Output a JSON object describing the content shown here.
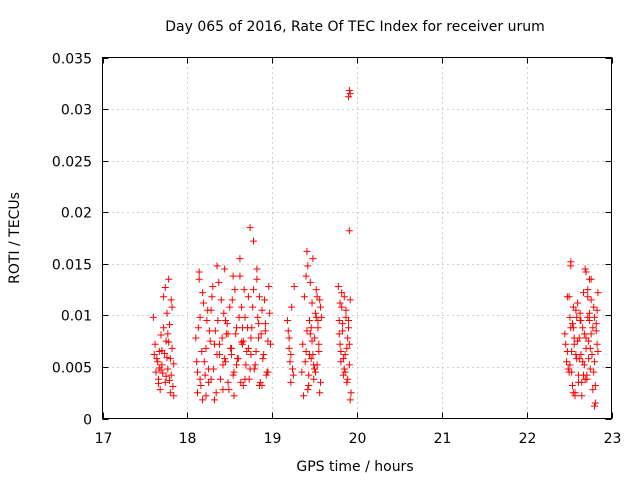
{
  "chart_data": {
    "type": "scatter",
    "title": "Day 065 of 2016, Rate Of TEC Index for receiver urum",
    "xlabel": "GPS time / hours",
    "ylabel": "ROTI / TECUs",
    "xlim": [
      17,
      23
    ],
    "ylim": [
      0,
      0.035
    ],
    "x_ticks": [
      "17",
      "18",
      "19",
      "20",
      "21",
      "22",
      "23"
    ],
    "y_ticks": [
      "0",
      "0.005",
      "0.01",
      "0.015",
      "0.02",
      "0.025",
      "0.03",
      "0.035"
    ],
    "grid": true,
    "marker": "+",
    "color": "#ff0000",
    "series": [
      {
        "name": "urum",
        "x": [
          17.6,
          17.62,
          17.63,
          17.65,
          17.66,
          17.67,
          17.68,
          17.69,
          17.7,
          17.71,
          17.72,
          17.73,
          17.74,
          17.75,
          17.76,
          17.77,
          17.78,
          17.79,
          17.8,
          17.81,
          17.82,
          17.83,
          17.84,
          17.61,
          17.64,
          17.66,
          17.69,
          17.72,
          17.75,
          17.78,
          17.8,
          17.82,
          17.84,
          17.7,
          17.76,
          17.79,
          17.81,
          17.74,
          17.67,
          17.77,
          18.1,
          18.12,
          18.14,
          18.15,
          18.16,
          18.18,
          18.2,
          18.22,
          18.24,
          18.26,
          18.28,
          18.3,
          18.32,
          18.34,
          18.36,
          18.38,
          18.4,
          18.42,
          18.44,
          18.46,
          18.48,
          18.5,
          18.52,
          18.54,
          18.56,
          18.58,
          18.6,
          18.62,
          18.64,
          18.66,
          18.68,
          18.7,
          18.72,
          18.74,
          18.76,
          18.78,
          18.8,
          18.82,
          18.84,
          18.86,
          18.88,
          18.9,
          18.92,
          18.94,
          18.96,
          18.98,
          18.11,
          18.13,
          18.17,
          18.19,
          18.21,
          18.23,
          18.25,
          18.27,
          18.29,
          18.31,
          18.33,
          18.35,
          18.37,
          18.39,
          18.41,
          18.43,
          18.45,
          18.47,
          18.49,
          18.51,
          18.53,
          18.55,
          18.57,
          18.59,
          18.61,
          18.63,
          18.65,
          18.67,
          18.69,
          18.71,
          18.73,
          18.75,
          18.77,
          18.79,
          18.81,
          18.83,
          18.85,
          18.87,
          18.89,
          18.91,
          18.93,
          18.95,
          18.97,
          18.12,
          18.22,
          18.32,
          18.42,
          18.52,
          18.62,
          18.72,
          18.82,
          18.92,
          18.15,
          18.25,
          18.35,
          18.45,
          18.55,
          18.65,
          18.75,
          18.85,
          18.95,
          18.18,
          18.28,
          18.38,
          18.48,
          18.58,
          18.68,
          18.78,
          18.88,
          18.14,
          18.44,
          18.64,
          18.74,
          18.84,
          18.54,
          18.66,
          19.18,
          19.2,
          19.22,
          19.24,
          19.26,
          19.19,
          19.21,
          19.23,
          19.25,
          19.2,
          19.22,
          19.35,
          19.37,
          19.38,
          19.4,
          19.41,
          19.42,
          19.43,
          19.44,
          19.45,
          19.46,
          19.47,
          19.48,
          19.49,
          19.5,
          19.51,
          19.52,
          19.53,
          19.54,
          19.55,
          19.56,
          19.57,
          19.58,
          19.36,
          19.39,
          19.42,
          19.45,
          19.48,
          19.51,
          19.54,
          19.57,
          19.4,
          19.44,
          19.47,
          19.5,
          19.53,
          19.43,
          19.46,
          19.49,
          19.52,
          19.55,
          19.41,
          19.56,
          19.78,
          19.79,
          19.8,
          19.81,
          19.82,
          19.83,
          19.84,
          19.85,
          19.86,
          19.87,
          19.88,
          19.89,
          19.9,
          19.91,
          19.92,
          19.93,
          19.79,
          19.81,
          19.83,
          19.85,
          19.87,
          19.89,
          19.91,
          19.8,
          19.84,
          19.88,
          19.92,
          19.82,
          19.86,
          19.9,
          19.9,
          19.91,
          19.92,
          19.91,
          22.45,
          22.47,
          22.48,
          22.5,
          22.51,
          22.52,
          22.53,
          22.54,
          22.55,
          22.56,
          22.57,
          22.58,
          22.59,
          22.6,
          22.61,
          22.62,
          22.63,
          22.64,
          22.65,
          22.66,
          22.67,
          22.68,
          22.69,
          22.7,
          22.71,
          22.72,
          22.73,
          22.74,
          22.75,
          22.76,
          22.77,
          22.78,
          22.79,
          22.8,
          22.81,
          22.82,
          22.83,
          22.84,
          22.46,
          22.49,
          22.52,
          22.55,
          22.58,
          22.61,
          22.64,
          22.67,
          22.7,
          22.73,
          22.76,
          22.79,
          22.82,
          22.48,
          22.51,
          22.54,
          22.57,
          22.6,
          22.63,
          22.66,
          22.69,
          22.72,
          22.75,
          22.78,
          22.81,
          22.84,
          22.5,
          22.53,
          22.56,
          22.59,
          22.62,
          22.65,
          22.68,
          22.71,
          22.74,
          22.77,
          22.8,
          22.83,
          22.52,
          22.55,
          22.7,
          22.72,
          22.74,
          22.76,
          22.8
        ],
        "y": [
          0.0098,
          0.0072,
          0.0045,
          0.0055,
          0.0038,
          0.0065,
          0.0028,
          0.0081,
          0.0052,
          0.0044,
          0.0118,
          0.0063,
          0.0035,
          0.0075,
          0.0102,
          0.0048,
          0.0135,
          0.0091,
          0.0058,
          0.0042,
          0.0068,
          0.0031,
          0.0022,
          0.0062,
          0.0058,
          0.0034,
          0.0047,
          0.0088,
          0.0041,
          0.0074,
          0.0025,
          0.0108,
          0.0053,
          0.0066,
          0.0059,
          0.0037,
          0.0115,
          0.0127,
          0.0049,
          0.0082,
          0.0078,
          0.0045,
          0.0142,
          0.0098,
          0.0032,
          0.0122,
          0.0055,
          0.0068,
          0.0105,
          0.0085,
          0.0038,
          0.0128,
          0.0072,
          0.0025,
          0.0095,
          0.0062,
          0.0115,
          0.0052,
          0.0145,
          0.0082,
          0.0035,
          0.0108,
          0.0068,
          0.0042,
          0.0125,
          0.0088,
          0.0058,
          0.0138,
          0.0074,
          0.0032,
          0.0098,
          0.0065,
          0.0118,
          0.0048,
          0.0088,
          0.0172,
          0.0052,
          0.0135,
          0.0078,
          0.0035,
          0.0105,
          0.0062,
          0.0092,
          0.0045,
          0.0128,
          0.0072,
          0.0055,
          0.0088,
          0.0065,
          0.0112,
          0.0042,
          0.0095,
          0.0035,
          0.0075,
          0.0118,
          0.0048,
          0.0085,
          0.0062,
          0.0132,
          0.0038,
          0.0078,
          0.0102,
          0.0055,
          0.0092,
          0.0028,
          0.0068,
          0.0115,
          0.0045,
          0.0082,
          0.0058,
          0.0098,
          0.0035,
          0.0072,
          0.0125,
          0.0052,
          0.0088,
          0.0038,
          0.0078,
          0.0108,
          0.0048,
          0.0065,
          0.0098,
          0.0032,
          0.0082,
          0.0058,
          0.0115,
          0.0042,
          0.0075,
          0.0102,
          0.0025,
          0.0022,
          0.0018,
          0.0028,
          0.0062,
          0.0155,
          0.0068,
          0.0145,
          0.0085,
          0.0038,
          0.0048,
          0.0148,
          0.0095,
          0.0022,
          0.0088,
          0.0062,
          0.0118,
          0.0045,
          0.0018,
          0.0105,
          0.0072,
          0.0082,
          0.0052,
          0.0038,
          0.0125,
          0.0032,
          0.0135,
          0.0058,
          0.0108,
          0.0185,
          0.0092,
          0.0138,
          0.0075,
          0.0095,
          0.0078,
          0.0062,
          0.0048,
          0.0128,
          0.0085,
          0.0055,
          0.0108,
          0.0042,
          0.0068,
          0.0035,
          0.0045,
          0.0022,
          0.0118,
          0.0065,
          0.0085,
          0.0148,
          0.0042,
          0.0095,
          0.0132,
          0.0058,
          0.0112,
          0.0155,
          0.0038,
          0.0078,
          0.0102,
          0.0125,
          0.0052,
          0.0088,
          0.0065,
          0.0115,
          0.0035,
          0.0098,
          0.0072,
          0.0055,
          0.0028,
          0.0082,
          0.0062,
          0.0045,
          0.0095,
          0.0108,
          0.0138,
          0.0062,
          0.0075,
          0.0048,
          0.0118,
          0.0032,
          0.0088,
          0.0052,
          0.0098,
          0.0072,
          0.0162,
          0.0025,
          0.0128,
          0.0095,
          0.0072,
          0.0055,
          0.0108,
          0.0085,
          0.0042,
          0.0118,
          0.0062,
          0.0098,
          0.0035,
          0.0078,
          0.0088,
          0.0052,
          0.0115,
          0.0025,
          0.0082,
          0.0065,
          0.0092,
          0.0048,
          0.0105,
          0.0038,
          0.0072,
          0.0112,
          0.0058,
          0.0068,
          0.0018,
          0.0122,
          0.0045,
          0.0095,
          0.0312,
          0.0318,
          0.0315,
          0.0182,
          0.0082,
          0.0055,
          0.0118,
          0.0045,
          0.0098,
          0.0152,
          0.0065,
          0.0032,
          0.0088,
          0.0072,
          0.0025,
          0.0105,
          0.0058,
          0.0112,
          0.0042,
          0.0078,
          0.0095,
          0.0062,
          0.0035,
          0.0088,
          0.0122,
          0.0052,
          0.0145,
          0.0068,
          0.0038,
          0.0098,
          0.0075,
          0.0135,
          0.0048,
          0.0082,
          0.0062,
          0.0028,
          0.0108,
          0.0055,
          0.0015,
          0.0092,
          0.0072,
          0.0122,
          0.0072,
          0.0048,
          0.0088,
          0.0108,
          0.0062,
          0.0035,
          0.0095,
          0.0042,
          0.0078,
          0.0058,
          0.0115,
          0.0045,
          0.0085,
          0.0065,
          0.0052,
          0.0092,
          0.0022,
          0.0075,
          0.0102,
          0.0055,
          0.0038,
          0.0125,
          0.0068,
          0.0088,
          0.0032,
          0.0065,
          0.0118,
          0.0045,
          0.0078,
          0.0098,
          0.0058,
          0.0022,
          0.0082,
          0.0042,
          0.0095,
          0.0062,
          0.0012,
          0.0105,
          0.0148,
          0.0025,
          0.0142,
          0.0118,
          0.0102,
          0.0135,
          0.0098
        ]
      }
    ]
  }
}
